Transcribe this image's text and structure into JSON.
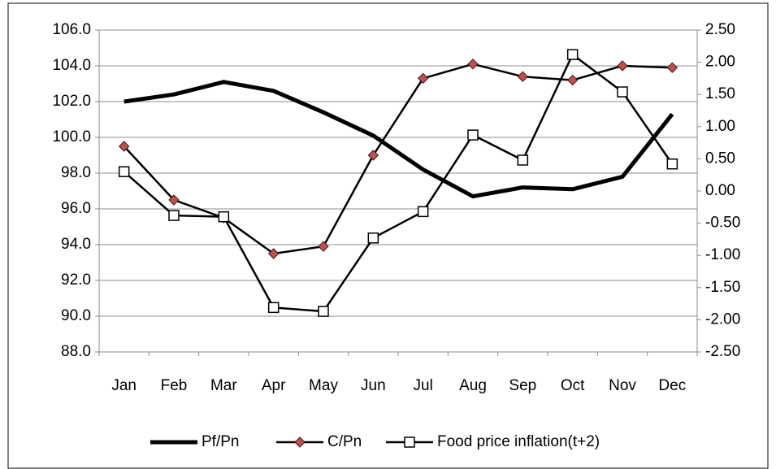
{
  "chart_data": {
    "type": "line",
    "categories": [
      "Jan",
      "Feb",
      "Mar",
      "Apr",
      "May",
      "Jun",
      "Jul",
      "Aug",
      "Sep",
      "Oct",
      "Nov",
      "Dec"
    ],
    "series": [
      {
        "name": "Pf/Pn",
        "color": "#000000",
        "marker": null,
        "values": [
          102.0,
          102.4,
          103.1,
          102.6,
          101.4,
          100.1,
          98.2,
          96.7,
          97.2,
          97.1,
          97.8,
          101.3
        ]
      },
      {
        "name": "C/Pn",
        "color": "#000000",
        "marker": "diamond",
        "marker_color": "#c0504d",
        "values": [
          99.5,
          96.5,
          95.5,
          93.5,
          93.9,
          99.0,
          103.3,
          104.1,
          103.4,
          103.2,
          104.0,
          103.9
        ]
      },
      {
        "name": "Food price inflation(t+2)",
        "color": "#000000",
        "marker": "square",
        "marker_color": "#ffffff",
        "axis": "y2",
        "values": [
          0.3,
          -0.38,
          -0.4,
          -1.81,
          -1.87,
          -0.73,
          -0.32,
          0.87,
          0.48,
          2.12,
          1.54,
          0.42
        ]
      }
    ],
    "ylim": [
      88,
      106
    ],
    "yticks": [
      {
        "value": 88,
        "label": "88.0"
      },
      {
        "value": 90,
        "label": "90.0"
      },
      {
        "value": 92,
        "label": "92.0"
      },
      {
        "value": 94,
        "label": "94.0"
      },
      {
        "value": 96,
        "label": "96.0"
      },
      {
        "value": 98,
        "label": "98.0"
      },
      {
        "value": 100,
        "label": "100.0"
      },
      {
        "value": 102,
        "label": "102.0"
      },
      {
        "value": 104,
        "label": "104.0"
      },
      {
        "value": 106,
        "label": "106.0"
      }
    ],
    "y2lim": [
      -2.5,
      2.5
    ],
    "y2ticks": [
      {
        "value": -2.5,
        "label": "-2.50"
      },
      {
        "value": -2,
        "label": "-2.00"
      },
      {
        "value": -1.5,
        "label": "-1.50"
      },
      {
        "value": -1,
        "label": "-1.00"
      },
      {
        "value": -0.5,
        "label": "-0.50"
      },
      {
        "value": 0,
        "label": "0.00"
      },
      {
        "value": 0.5,
        "label": "0.50"
      },
      {
        "value": 1,
        "label": "1.00"
      },
      {
        "value": 1.5,
        "label": "1.50"
      },
      {
        "value": 2,
        "label": "2.00"
      },
      {
        "value": 2.5,
        "label": "2.50"
      }
    ],
    "grid": true,
    "legend": "bottom"
  }
}
